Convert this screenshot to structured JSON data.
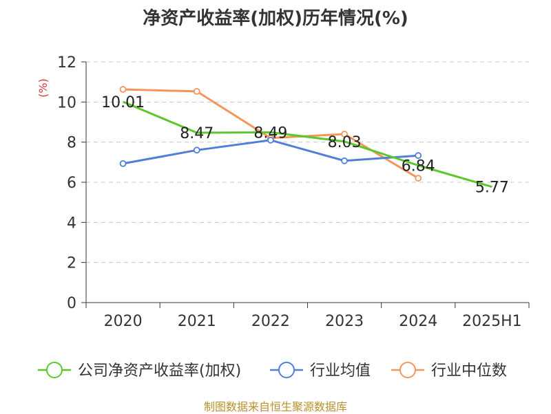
{
  "header": {
    "title": "净资产收益率(加权)历年情况(%)"
  },
  "footer": {
    "source": "制图数据来自恒生聚源数据库"
  },
  "chart_data": {
    "type": "line",
    "title": "净资产收益率(加权)历年情况(%)",
    "ylabel": "(%)",
    "xlabel": "",
    "categories": [
      "2020",
      "2021",
      "2022",
      "2023",
      "2024",
      "2025H1"
    ],
    "ylim": [
      0,
      12
    ],
    "yticks": [
      0,
      2,
      4,
      6,
      8,
      10,
      12
    ],
    "grid": true,
    "legend_position": "bottom",
    "series": [
      {
        "name": "公司净资产收益率(加权)",
        "color": "#5cc72a",
        "values": [
          10.01,
          8.47,
          8.49,
          8.03,
          6.84,
          5.77
        ],
        "labels": [
          "10.01",
          "8.47",
          "8.49",
          "8.03",
          "6.84",
          "5.77"
        ]
      },
      {
        "name": "行业均值",
        "color": "#4f7fd9",
        "values": [
          6.93,
          7.6,
          8.1,
          7.07,
          7.33,
          null
        ]
      },
      {
        "name": "行业中位数",
        "color": "#f5955a",
        "values": [
          10.63,
          10.53,
          8.2,
          8.4,
          6.2,
          null
        ]
      }
    ]
  }
}
